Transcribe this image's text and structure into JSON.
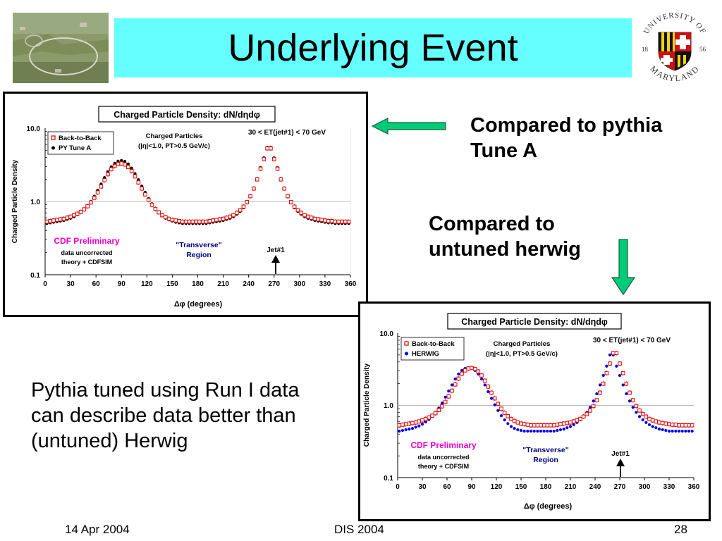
{
  "slide": {
    "title": "Underlying Event",
    "note_tune_a": "Compared to pythia Tune A",
    "note_herwig": "Compared to untuned herwig",
    "body_text": "Pythia tuned using Run I data can describe data better than (untuned) Herwig",
    "footer_date": "14 Apr 2004",
    "footer_conference": "DIS 2004",
    "footer_page": "28"
  },
  "logo": {
    "top_text": "UNIVERSITY OF",
    "bottom_text": "MARYLAND",
    "year_left": "18",
    "year_right": "56"
  },
  "colors": {
    "title_background": "#66ffff",
    "arrow_fill": "#00cc77",
    "data_red": "#dd0000",
    "theory_blue": "#0000ee",
    "preliminary_magenta": "#ee00cc",
    "region_navy": "#000080"
  },
  "chart_data": [
    {
      "type": "scatter",
      "title": "Charged Particle Density: dN/dηdφ",
      "xlabel": "Δφ  (degrees)",
      "ylabel": "Charged Particle Density",
      "yscale": "log",
      "xlim": [
        0,
        360
      ],
      "ylim": [
        0.1,
        10.0
      ],
      "x_ticks": [
        "0",
        "30",
        "60",
        "90",
        "120",
        "150",
        "180",
        "210",
        "240",
        "270",
        "300",
        "330",
        "360"
      ],
      "y_ticks": [
        "10.0",
        "1.0",
        "0.1"
      ],
      "grid": "horizontal at 1.0",
      "legend": "top-left",
      "annotations": {
        "particles_line1": "Charged Particles",
        "particles_line2": "(|η|<1.0, PT>0.5 GeV/c)",
        "et_cut": "30 < ET(jet#1) < 70 GeV",
        "preliminary": "CDF Preliminary",
        "uncorrected_line1": "data uncorrected",
        "uncorrected_line2": "theory + CDFSIM",
        "transverse_line1": "\"Transverse\"",
        "transverse_line2": "Region",
        "jet_label": "Jet#1"
      },
      "x": [
        2,
        6,
        10,
        14,
        18,
        22,
        26,
        30,
        34,
        38,
        42,
        46,
        50,
        54,
        58,
        62,
        66,
        70,
        74,
        78,
        82,
        86,
        90,
        94,
        98,
        102,
        106,
        110,
        114,
        118,
        122,
        126,
        130,
        134,
        138,
        142,
        146,
        150,
        154,
        158,
        162,
        166,
        170,
        174,
        178,
        182,
        186,
        190,
        194,
        198,
        202,
        206,
        210,
        214,
        218,
        222,
        226,
        230,
        234,
        238,
        242,
        246,
        250,
        254,
        258,
        262,
        266,
        270,
        274,
        278,
        282,
        286,
        290,
        294,
        298,
        302,
        306,
        310,
        314,
        318,
        322,
        326,
        330,
        334,
        338,
        342,
        346,
        350,
        354,
        358
      ],
      "series": [
        {
          "name": "Back-to-Back",
          "marker": "open-square",
          "values": [
            0.53,
            0.54,
            0.55,
            0.56,
            0.57,
            0.58,
            0.6,
            0.62,
            0.65,
            0.68,
            0.72,
            0.78,
            0.86,
            0.97,
            1.12,
            1.33,
            1.6,
            1.95,
            2.35,
            2.75,
            3.05,
            3.25,
            3.3,
            3.2,
            2.95,
            2.6,
            2.2,
            1.82,
            1.5,
            1.25,
            1.05,
            0.9,
            0.79,
            0.71,
            0.65,
            0.61,
            0.58,
            0.56,
            0.55,
            0.54,
            0.53,
            0.53,
            0.53,
            0.53,
            0.53,
            0.53,
            0.53,
            0.53,
            0.54,
            0.55,
            0.56,
            0.57,
            0.58,
            0.6,
            0.62,
            0.65,
            0.7,
            0.76,
            0.85,
            0.98,
            1.18,
            1.5,
            2.0,
            2.8,
            3.8,
            5.3,
            5.3,
            3.8,
            2.8,
            2.0,
            1.5,
            1.18,
            0.98,
            0.85,
            0.76,
            0.7,
            0.65,
            0.62,
            0.6,
            0.58,
            0.57,
            0.56,
            0.55,
            0.54,
            0.54,
            0.53,
            0.53,
            0.53,
            0.53,
            0.53
          ]
        },
        {
          "name": "PY Tune A",
          "marker": "filled-circle",
          "values": [
            0.5,
            0.51,
            0.52,
            0.53,
            0.54,
            0.55,
            0.57,
            0.59,
            0.62,
            0.66,
            0.71,
            0.78,
            0.87,
            1.0,
            1.18,
            1.42,
            1.73,
            2.12,
            2.55,
            2.98,
            3.32,
            3.55,
            3.62,
            3.52,
            3.25,
            2.85,
            2.4,
            1.98,
            1.62,
            1.33,
            1.1,
            0.93,
            0.8,
            0.71,
            0.64,
            0.59,
            0.56,
            0.54,
            0.52,
            0.51,
            0.5,
            0.5,
            0.5,
            0.5,
            0.5,
            0.5,
            0.5,
            0.5,
            0.51,
            0.52,
            0.53,
            0.54,
            0.55,
            0.57,
            0.59,
            0.62,
            0.67,
            0.73,
            0.82,
            0.96,
            1.18,
            1.52,
            2.05,
            2.9,
            3.95,
            5.5,
            5.5,
            3.95,
            2.9,
            2.05,
            1.52,
            1.18,
            0.96,
            0.82,
            0.73,
            0.67,
            0.62,
            0.59,
            0.57,
            0.55,
            0.54,
            0.53,
            0.52,
            0.51,
            0.51,
            0.5,
            0.5,
            0.5,
            0.5,
            0.5
          ]
        }
      ]
    },
    {
      "type": "scatter",
      "title": "Charged Particle Density: dN/dηdφ",
      "xlabel": "Δφ  (degrees)",
      "ylabel": "Charged Particle Density",
      "yscale": "log",
      "xlim": [
        0,
        360
      ],
      "ylim": [
        0.1,
        10.0
      ],
      "x_ticks": [
        "0",
        "30",
        "60",
        "90",
        "120",
        "150",
        "180",
        "210",
        "240",
        "270",
        "300",
        "330",
        "360"
      ],
      "y_ticks": [
        "10.0",
        "1.0",
        "0.1"
      ],
      "grid": "horizontal at 1.0",
      "legend": "top-left",
      "annotations": {
        "particles_line1": "Charged Particles",
        "particles_line2": "(|η|<1.0, PT>0.5 GeV/c)",
        "et_cut": "30 < ET(jet#1) < 70 GeV",
        "preliminary": "CDF Preliminary",
        "uncorrected_line1": "data uncorrected",
        "uncorrected_line2": "theory + CDFSIM",
        "transverse_line1": "\"Transverse\"",
        "transverse_line2": "Region",
        "jet_label": "Jet#1"
      },
      "x": [
        2,
        6,
        10,
        14,
        18,
        22,
        26,
        30,
        34,
        38,
        42,
        46,
        50,
        54,
        58,
        62,
        66,
        70,
        74,
        78,
        82,
        86,
        90,
        94,
        98,
        102,
        106,
        110,
        114,
        118,
        122,
        126,
        130,
        134,
        138,
        142,
        146,
        150,
        154,
        158,
        162,
        166,
        170,
        174,
        178,
        182,
        186,
        190,
        194,
        198,
        202,
        206,
        210,
        214,
        218,
        222,
        226,
        230,
        234,
        238,
        242,
        246,
        250,
        254,
        258,
        262,
        266,
        270,
        274,
        278,
        282,
        286,
        290,
        294,
        298,
        302,
        306,
        310,
        314,
        318,
        322,
        326,
        330,
        334,
        338,
        342,
        346,
        350,
        354,
        358
      ],
      "series": [
        {
          "name": "Back-to-Back",
          "marker": "open-square",
          "values": [
            0.53,
            0.54,
            0.55,
            0.56,
            0.57,
            0.58,
            0.6,
            0.62,
            0.65,
            0.68,
            0.72,
            0.78,
            0.86,
            0.97,
            1.12,
            1.33,
            1.6,
            1.95,
            2.35,
            2.75,
            3.05,
            3.25,
            3.3,
            3.2,
            2.95,
            2.6,
            2.2,
            1.82,
            1.5,
            1.25,
            1.05,
            0.9,
            0.79,
            0.71,
            0.65,
            0.61,
            0.58,
            0.56,
            0.55,
            0.54,
            0.53,
            0.53,
            0.53,
            0.53,
            0.53,
            0.53,
            0.53,
            0.53,
            0.54,
            0.55,
            0.56,
            0.57,
            0.58,
            0.6,
            0.62,
            0.65,
            0.7,
            0.76,
            0.85,
            0.98,
            1.18,
            1.5,
            2.0,
            2.8,
            3.8,
            5.3,
            5.3,
            3.8,
            2.8,
            2.0,
            1.5,
            1.18,
            0.98,
            0.85,
            0.76,
            0.7,
            0.65,
            0.62,
            0.6,
            0.58,
            0.57,
            0.56,
            0.55,
            0.54,
            0.54,
            0.53,
            0.53,
            0.53,
            0.53,
            0.53
          ]
        },
        {
          "name": "HERWIG",
          "marker": "filled-circle",
          "values": [
            0.44,
            0.45,
            0.46,
            0.47,
            0.48,
            0.5,
            0.52,
            0.55,
            0.59,
            0.64,
            0.71,
            0.8,
            0.92,
            1.08,
            1.3,
            1.58,
            1.92,
            2.32,
            2.72,
            3.05,
            3.25,
            3.32,
            3.25,
            3.05,
            2.72,
            2.32,
            1.92,
            1.55,
            1.25,
            1.02,
            0.85,
            0.72,
            0.63,
            0.56,
            0.51,
            0.48,
            0.46,
            0.45,
            0.44,
            0.44,
            0.44,
            0.44,
            0.44,
            0.44,
            0.44,
            0.44,
            0.44,
            0.44,
            0.45,
            0.46,
            0.47,
            0.49,
            0.51,
            0.54,
            0.58,
            0.63,
            0.7,
            0.8,
            0.94,
            1.15,
            1.45,
            1.92,
            2.6,
            3.5,
            5.0,
            5.0,
            3.5,
            2.6,
            1.92,
            1.45,
            1.15,
            0.94,
            0.8,
            0.7,
            0.63,
            0.58,
            0.54,
            0.51,
            0.49,
            0.47,
            0.46,
            0.45,
            0.44,
            0.44,
            0.44,
            0.44,
            0.44,
            0.44,
            0.44,
            0.44
          ]
        }
      ]
    }
  ]
}
